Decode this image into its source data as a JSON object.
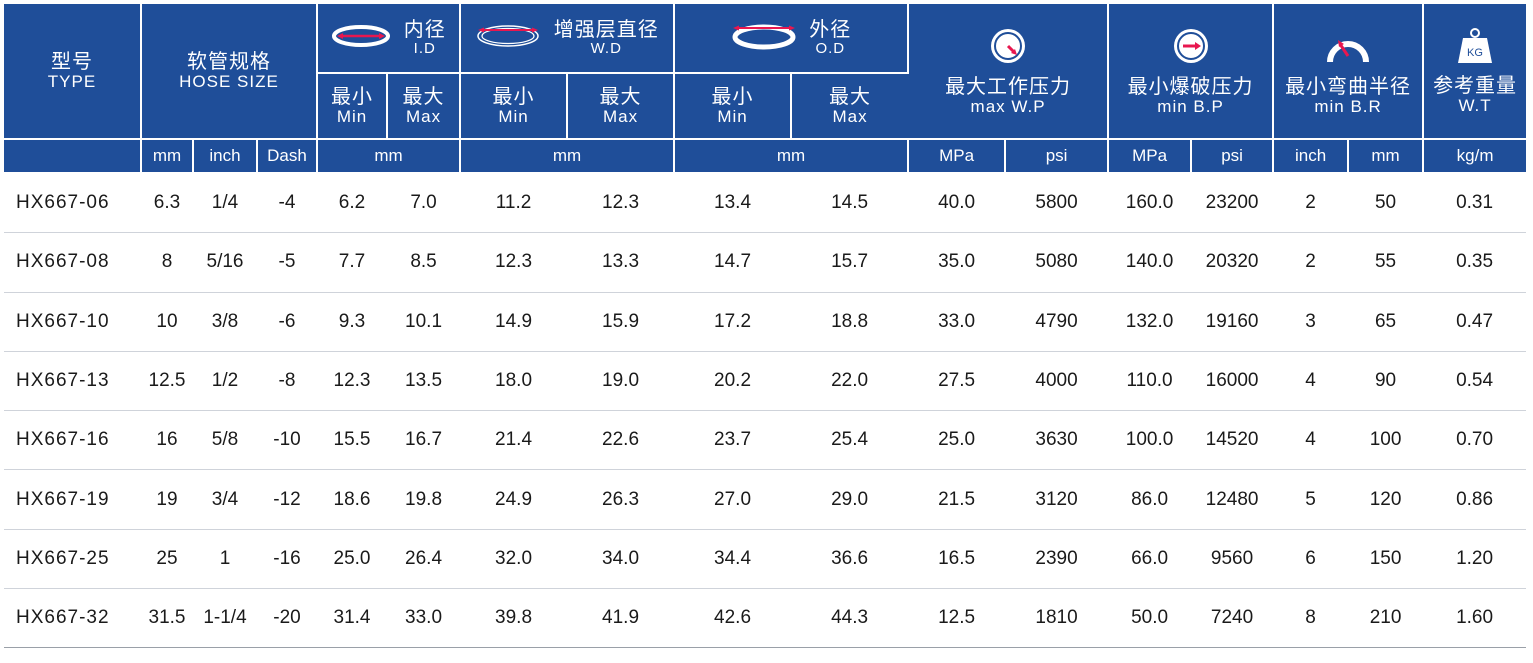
{
  "header": {
    "type": {
      "zh": "型号",
      "en": "TYPE"
    },
    "hose_size": {
      "zh": "软管规格",
      "en": "HOSE SIZE"
    },
    "id": {
      "zh": "内径",
      "en": "I.D"
    },
    "wd": {
      "zh": "增强层直径",
      "en": "W.D"
    },
    "od": {
      "zh": "外径",
      "en": "O.D"
    },
    "wp": {
      "zh": "最大工作压力",
      "en": "max W.P"
    },
    "bp": {
      "zh": "最小爆破压力",
      "en": "min B.P"
    },
    "br": {
      "zh": "最小弯曲半径",
      "en": "min B.R"
    },
    "wt": {
      "zh": "参考重量",
      "en": "W.T"
    },
    "min": {
      "zh": "最小",
      "en": "Min"
    },
    "max": {
      "zh": "最大",
      "en": "Max"
    },
    "kg_icon_text": "KG"
  },
  "units": {
    "hose_mm": "mm",
    "hose_inch": "inch",
    "hose_dash": "Dash",
    "id": "mm",
    "wd": "mm",
    "od": "mm",
    "wp_mpa": "MPa",
    "wp_psi": "psi",
    "bp_mpa": "MPa",
    "bp_psi": "psi",
    "br_inch": "inch",
    "br_mm": "mm",
    "wt": "kg/m"
  },
  "colors": {
    "header_bg": "#1f4e99",
    "accent": "#e8174f"
  },
  "icons": {
    "id": "inner-diameter-ring-icon",
    "wd": "reinforcement-diameter-ring-icon",
    "od": "outer-diameter-ring-icon",
    "wp": "pressure-gauge-icon",
    "bp": "burst-gauge-icon",
    "br": "bend-radius-icon",
    "wt": "weight-kg-icon"
  },
  "rows": [
    [
      "HX667-06",
      "6.3",
      "1/4",
      "-4",
      "6.2",
      "7.0",
      "11.2",
      "12.3",
      "13.4",
      "14.5",
      "40.0",
      "5800",
      "160.0",
      "23200",
      "2",
      "50",
      "0.31"
    ],
    [
      "HX667-08",
      "8",
      "5/16",
      "-5",
      "7.7",
      "8.5",
      "12.3",
      "13.3",
      "14.7",
      "15.7",
      "35.0",
      "5080",
      "140.0",
      "20320",
      "2",
      "55",
      "0.35"
    ],
    [
      "HX667-10",
      "10",
      "3/8",
      "-6",
      "9.3",
      "10.1",
      "14.9",
      "15.9",
      "17.2",
      "18.8",
      "33.0",
      "4790",
      "132.0",
      "19160",
      "3",
      "65",
      "0.47"
    ],
    [
      "HX667-13",
      "12.5",
      "1/2",
      "-8",
      "12.3",
      "13.5",
      "18.0",
      "19.0",
      "20.2",
      "22.0",
      "27.5",
      "4000",
      "110.0",
      "16000",
      "4",
      "90",
      "0.54"
    ],
    [
      "HX667-16",
      "16",
      "5/8",
      "-10",
      "15.5",
      "16.7",
      "21.4",
      "22.6",
      "23.7",
      "25.4",
      "25.0",
      "3630",
      "100.0",
      "14520",
      "4",
      "100",
      "0.70"
    ],
    [
      "HX667-19",
      "19",
      "3/4",
      "-12",
      "18.6",
      "19.8",
      "24.9",
      "26.3",
      "27.0",
      "29.0",
      "21.5",
      "3120",
      "86.0",
      "12480",
      "5",
      "120",
      "0.86"
    ],
    [
      "HX667-25",
      "25",
      "1",
      "-16",
      "25.0",
      "26.4",
      "32.0",
      "34.0",
      "34.4",
      "36.6",
      "16.5",
      "2390",
      "66.0",
      "9560",
      "6",
      "150",
      "1.20"
    ],
    [
      "HX667-32",
      "31.5",
      "1-1/4",
      "-20",
      "31.4",
      "33.0",
      "39.8",
      "41.9",
      "42.6",
      "44.3",
      "12.5",
      "1810",
      "50.0",
      "7240",
      "8",
      "210",
      "1.60"
    ]
  ]
}
